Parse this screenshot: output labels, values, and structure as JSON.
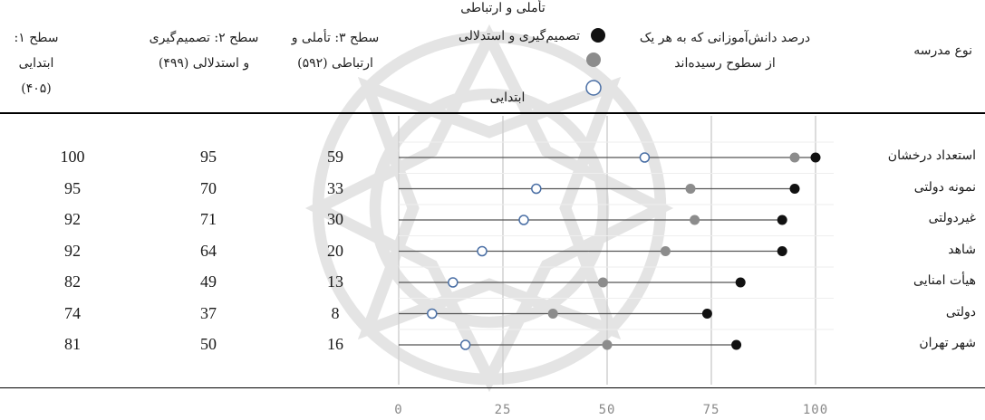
{
  "headers": {
    "col_level1_line1": "سطح ۱: ابتدایی",
    "col_level1_line2": "(۴۰۵)",
    "col_level2_line1": "سطح ۲: تصمیم‌گیری",
    "col_level2_line2": "و استدلالی (۴۹۹)",
    "col_level3_line1": "سطح ۳: تأملی و",
    "col_level3_line2": "ارتباطی (۵۹۲)",
    "col_chart_line1": "درصد دانش‌آموزانی که به هر یک",
    "col_chart_line2": "از سطوح رسیده‌اند",
    "col_school": "نوع مدرسه"
  },
  "legend": {
    "reflective": "تأملی و ارتباطی",
    "decision": "تصمیم‌گیری و استدلالی",
    "elementary": "ابتدایی"
  },
  "colors": {
    "reflective": "#111111",
    "decision": "#8c8c8c",
    "elementary_stroke": "#4a6fa5",
    "connector": "#555555",
    "grid": "#d0d0d0"
  },
  "chart_data": {
    "type": "dot",
    "xlim": [
      0,
      100
    ],
    "x_ticks": [
      "0",
      "25",
      "50",
      "75",
      "100"
    ],
    "categories": [
      "استعداد درخشان",
      "نمونه دولتی",
      "غیردولتی",
      "شاهد",
      "هیأت امنایی",
      "دولتی",
      "شهر تهران"
    ],
    "series": [
      {
        "key": "level1",
        "name": "ابتدایی",
        "values": [
          100,
          95,
          92,
          92,
          82,
          74,
          81
        ]
      },
      {
        "key": "level2",
        "name": "تصمیم‌گیری و استدلالی",
        "values": [
          95,
          70,
          71,
          64,
          49,
          37,
          50
        ]
      },
      {
        "key": "level3",
        "name": "تأملی و ارتباطی",
        "values": [
          59,
          33,
          30,
          20,
          13,
          8,
          16
        ]
      }
    ]
  }
}
